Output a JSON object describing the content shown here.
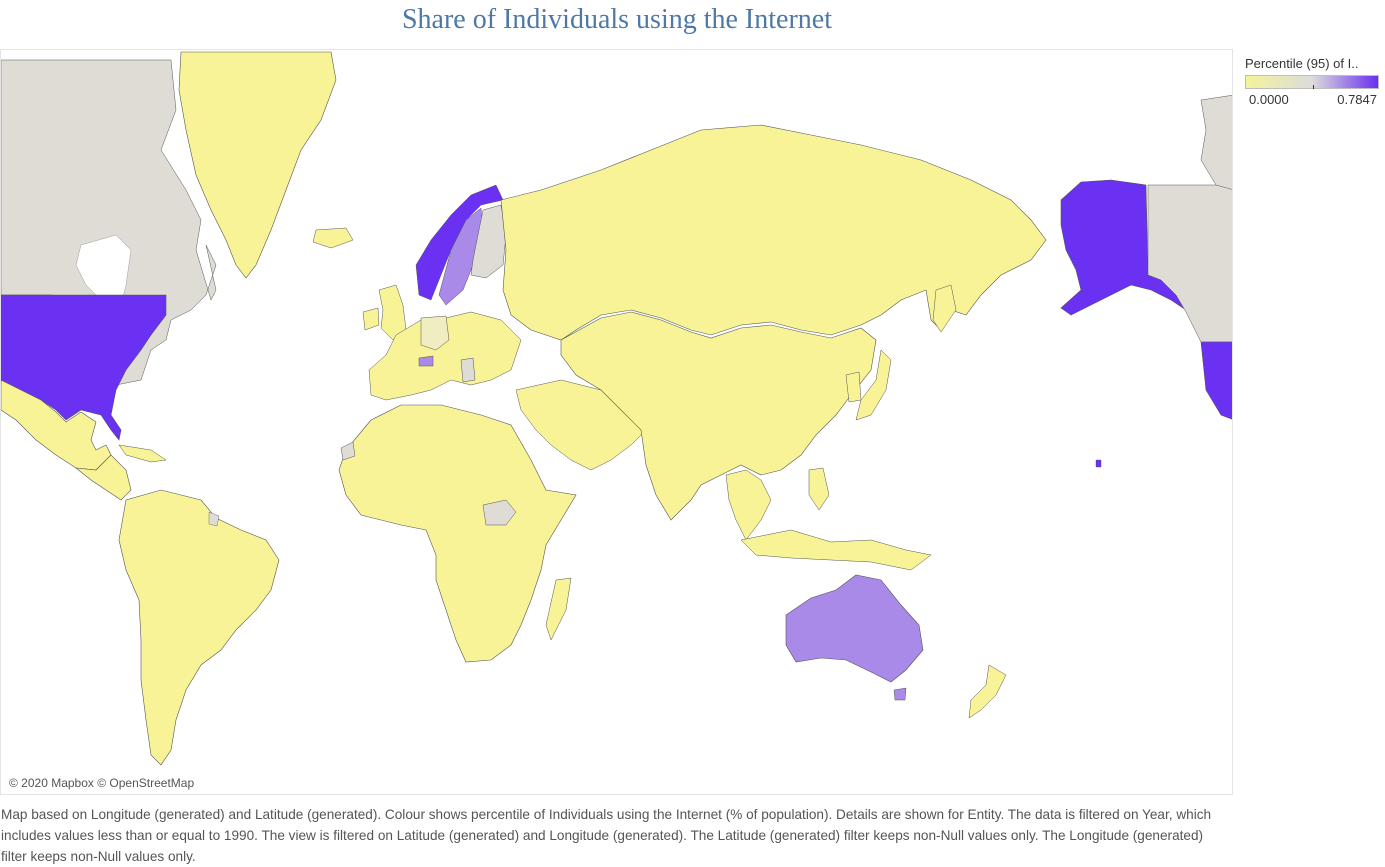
{
  "title": "Share of Individuals using the Internet",
  "attribution": "© 2020 Mapbox © OpenStreetMap",
  "legend": {
    "title": "Percentile (95) of I..",
    "min_label": "0.0000",
    "max_label": "0.7847",
    "color_low": "#f5f39a",
    "color_mid": "#dcdcdc",
    "color_high": "#6a2ff0"
  },
  "caption": "Map based on Longitude (generated) and Latitude (generated).  Colour shows percentile of Individuals using the Internet (% of population).  Details are shown for Entity. The data is filtered on Year, which includes values less than or equal to 1990. The view is filtered on Latitude (generated) and Longitude (generated). The Latitude (generated) filter keeps non-Null values only. The Longitude (generated) filter keeps non-Null values only.",
  "colors": {
    "low": "#f7f396",
    "none": "#dedcd5",
    "mid": "#a98ae8",
    "high": "#6a31f2",
    "border": "#555555"
  }
}
